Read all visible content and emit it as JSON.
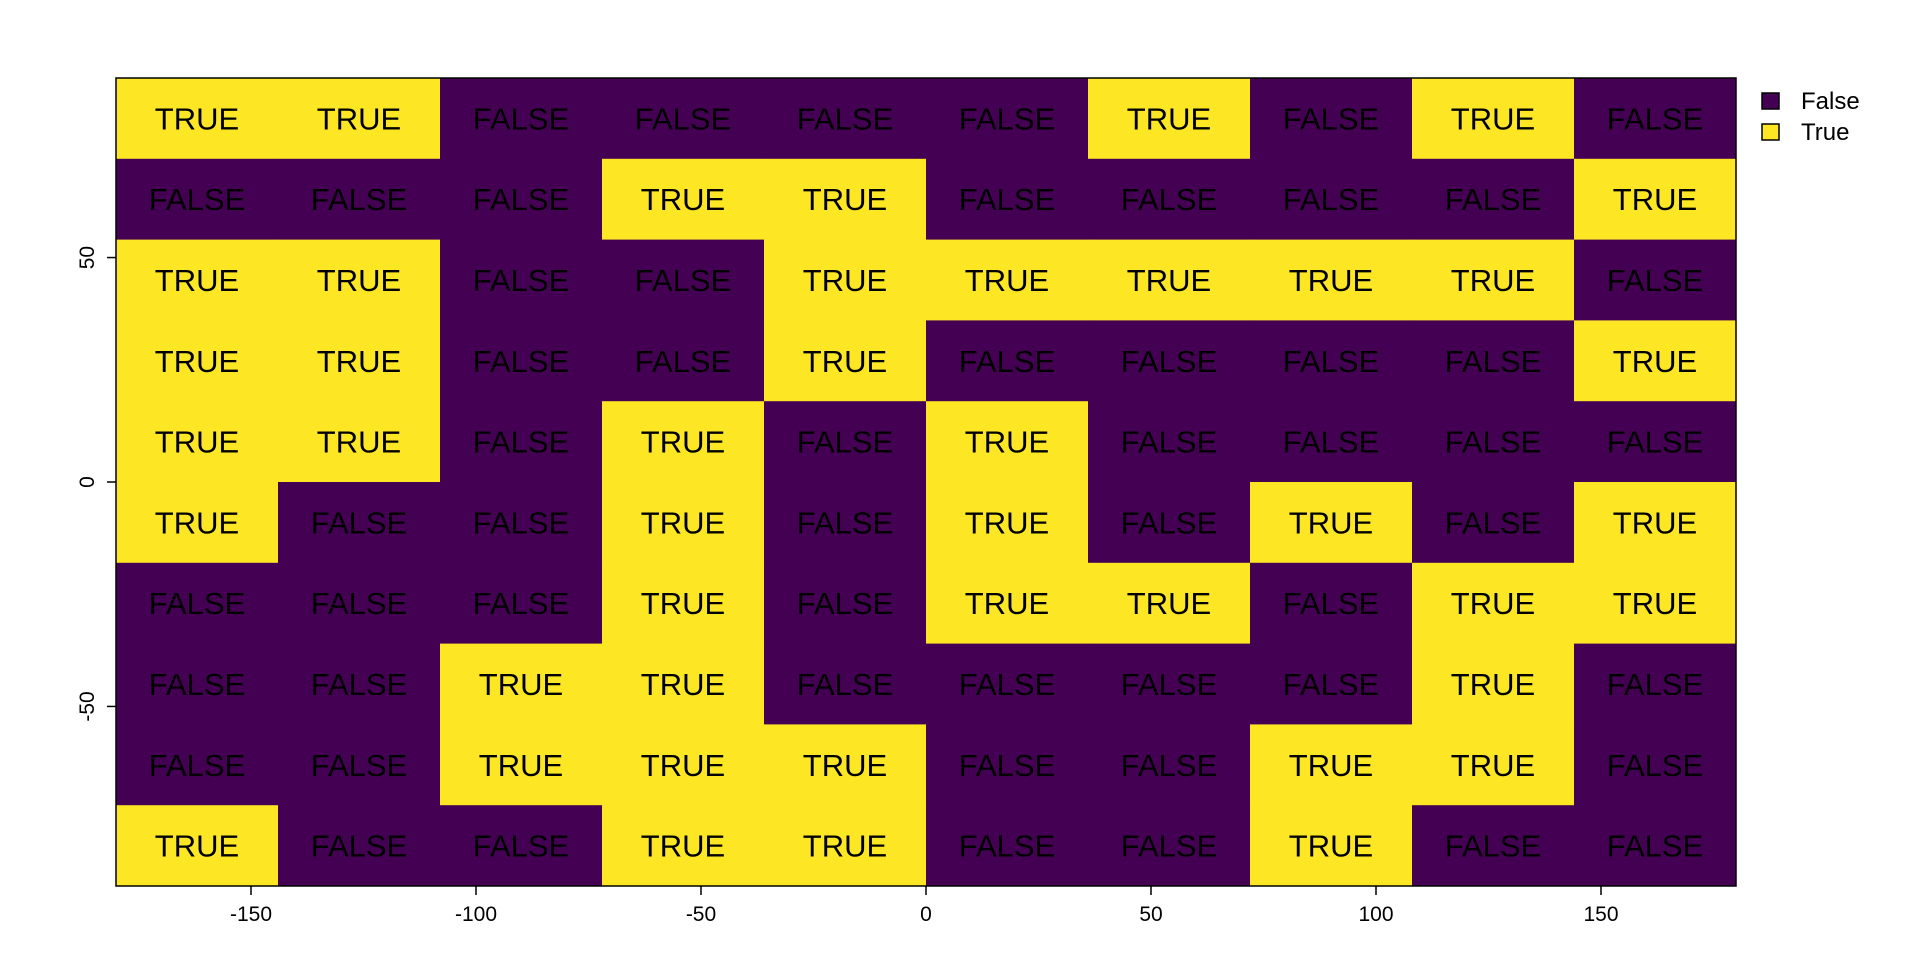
{
  "chart_data": {
    "type": "heatmap",
    "title": "",
    "xlabel": "",
    "ylabel": "",
    "xlim": [
      -180,
      180
    ],
    "ylim": [
      -90,
      90
    ],
    "x_centers": [
      -162,
      -126,
      -90,
      -54,
      -18,
      18,
      54,
      90,
      126,
      162
    ],
    "y_centers": [
      81,
      63,
      45,
      27,
      9,
      -9,
      -27,
      -45,
      -63,
      -81
    ],
    "x_ticks": [
      -150,
      -100,
      -50,
      0,
      50,
      100,
      150
    ],
    "y_ticks": [
      50,
      0,
      -50
    ],
    "x_tick_labels": [
      "-150",
      "-100",
      "-50",
      "0",
      "50",
      "100",
      "150"
    ],
    "y_tick_labels": [
      "50",
      "0",
      "-50"
    ],
    "values": [
      [
        "TRUE",
        "TRUE",
        "FALSE",
        "FALSE",
        "FALSE",
        "FALSE",
        "TRUE",
        "FALSE",
        "TRUE",
        "FALSE"
      ],
      [
        "FALSE",
        "FALSE",
        "FALSE",
        "TRUE",
        "TRUE",
        "FALSE",
        "FALSE",
        "FALSE",
        "FALSE",
        "TRUE"
      ],
      [
        "TRUE",
        "TRUE",
        "FALSE",
        "FALSE",
        "TRUE",
        "TRUE",
        "TRUE",
        "TRUE",
        "TRUE",
        "FALSE"
      ],
      [
        "TRUE",
        "TRUE",
        "FALSE",
        "FALSE",
        "TRUE",
        "FALSE",
        "FALSE",
        "FALSE",
        "FALSE",
        "TRUE"
      ],
      [
        "TRUE",
        "TRUE",
        "FALSE",
        "TRUE",
        "FALSE",
        "TRUE",
        "FALSE",
        "FALSE",
        "FALSE",
        "FALSE"
      ],
      [
        "TRUE",
        "FALSE",
        "FALSE",
        "TRUE",
        "FALSE",
        "TRUE",
        "FALSE",
        "TRUE",
        "FALSE",
        "TRUE"
      ],
      [
        "FALSE",
        "FALSE",
        "FALSE",
        "TRUE",
        "FALSE",
        "TRUE",
        "TRUE",
        "FALSE",
        "TRUE",
        "TRUE"
      ],
      [
        "FALSE",
        "FALSE",
        "TRUE",
        "TRUE",
        "FALSE",
        "FALSE",
        "FALSE",
        "FALSE",
        "TRUE",
        "FALSE"
      ],
      [
        "FALSE",
        "FALSE",
        "TRUE",
        "TRUE",
        "TRUE",
        "FALSE",
        "FALSE",
        "TRUE",
        "TRUE",
        "FALSE"
      ],
      [
        "TRUE",
        "FALSE",
        "FALSE",
        "TRUE",
        "TRUE",
        "FALSE",
        "FALSE",
        "TRUE",
        "FALSE",
        "FALSE"
      ]
    ],
    "colors": {
      "FALSE": "#440154",
      "TRUE": "#fde725"
    },
    "legend": {
      "placement": "top-right, outside plot",
      "entries": [
        {
          "label": "False",
          "key": "FALSE"
        },
        {
          "label": "True",
          "key": "TRUE"
        }
      ]
    },
    "grid": false
  }
}
